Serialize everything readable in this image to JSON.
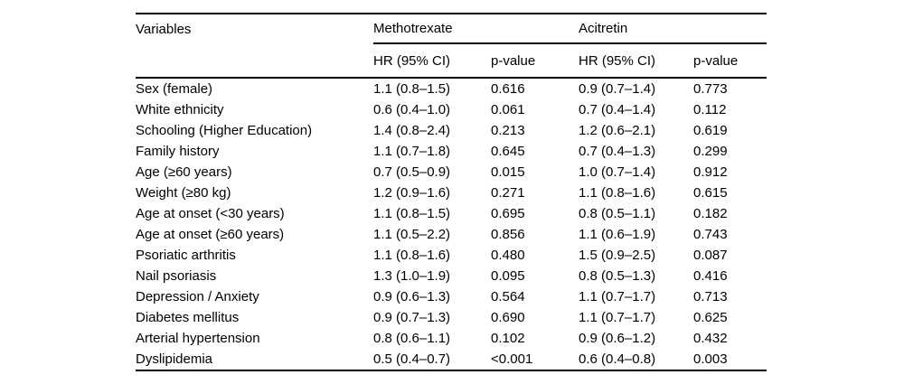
{
  "page": {
    "background": "#ffffff",
    "text_color": "#000000",
    "rule_color": "#000000"
  },
  "table": {
    "variables_header": "Variables",
    "groups": [
      {
        "label": "Methotrexate"
      },
      {
        "label": "Acitretin"
      }
    ],
    "subheaders": [
      "HR (95% CI)",
      "p-value",
      "HR (95% CI)",
      "p-value"
    ],
    "rows": [
      {
        "variable": "Sex (female)",
        "values": [
          "1.1 (0.8–1.5)",
          "0.616",
          "0.9 (0.7–1.4)",
          "0.773"
        ]
      },
      {
        "variable": "White ethnicity",
        "values": [
          "0.6 (0.4–1.0)",
          "0.061",
          "0.7 (0.4–1.4)",
          "0.112"
        ]
      },
      {
        "variable": "Schooling (Higher Education)",
        "values": [
          "1.4 (0.8–2.4)",
          "0.213",
          "1.2 (0.6–2.1)",
          "0.619"
        ]
      },
      {
        "variable": "Family history",
        "values": [
          "1.1 (0.7–1.8)",
          "0.645",
          "0.7 (0.4–1.3)",
          "0.299"
        ]
      },
      {
        "variable": "Age (≥60 years)",
        "values": [
          "0.7 (0.5–0.9)",
          "0.015",
          "1.0 (0.7–1.4)",
          "0.912"
        ]
      },
      {
        "variable": "Weight (≥80 kg)",
        "values": [
          "1.2 (0.9–1.6)",
          "0.271",
          "1.1 (0.8–1.6)",
          "0.615"
        ]
      },
      {
        "variable": "Age at onset (<30 years)",
        "values": [
          "1.1 (0.8–1.5)",
          "0.695",
          "0.8 (0.5–1.1)",
          "0.182"
        ]
      },
      {
        "variable": "Age at onset (≥60 years)",
        "values": [
          "1.1 (0.5–2.2)",
          "0.856",
          "1.1 (0.6–1.9)",
          "0.743"
        ]
      },
      {
        "variable": "Psoriatic arthritis",
        "values": [
          "1.1 (0.8–1.6)",
          "0.480",
          "1.5 (0.9–2.5)",
          "0.087"
        ]
      },
      {
        "variable": "Nail psoriasis",
        "values": [
          "1.3 (1.0–1.9)",
          "0.095",
          "0.8 (0.5–1.3)",
          "0.416"
        ]
      },
      {
        "variable": "Depression / Anxiety",
        "values": [
          "0.9 (0.6–1.3)",
          "0.564",
          "1.1 (0.7–1.7)",
          "0.713"
        ]
      },
      {
        "variable": "Diabetes mellitus",
        "values": [
          "0.9 (0.7–1.3)",
          "0.690",
          "1.1 (0.7–1.7)",
          "0.625"
        ]
      },
      {
        "variable": "Arterial hypertension",
        "values": [
          "0.8 (0.6–1.1)",
          "0.102",
          "0.9 (0.6–1.2)",
          "0.432"
        ]
      },
      {
        "variable": "Dyslipidemia",
        "values": [
          "0.5 (0.4–0.7)",
          "<0.001",
          "0.6 (0.4–0.8)",
          "0.003"
        ]
      }
    ]
  }
}
